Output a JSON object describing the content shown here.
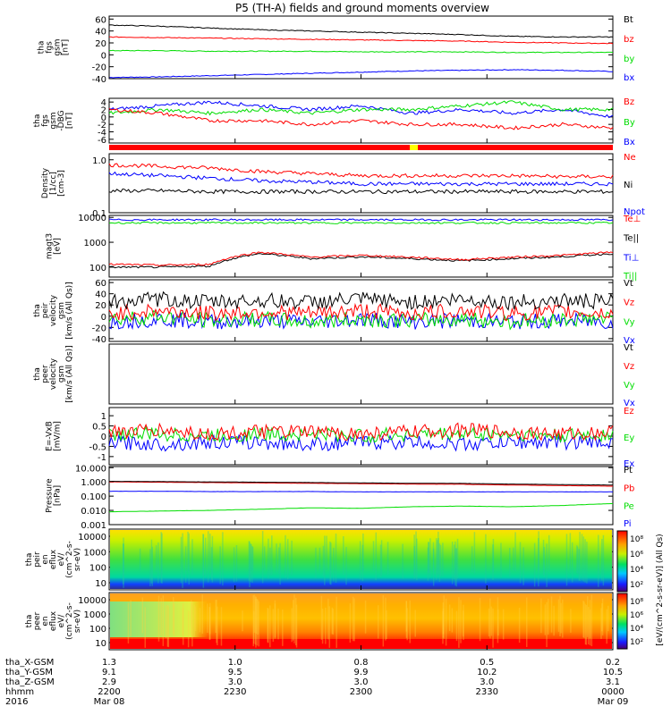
{
  "title": "P5 (TH-A) fields and ground moments overview",
  "colors": {
    "black": "#000000",
    "red": "#ff0000",
    "green": "#00dd00",
    "blue": "#0000ff",
    "yellow": "#ffff00"
  },
  "chart_data": [
    {
      "type": "line",
      "ylabel": [
        "tha",
        "fgs",
        "gsm",
        "[nT]"
      ],
      "ylim": [
        -40,
        65
      ],
      "yticks": [
        "60",
        "40",
        "20",
        "0",
        "-20",
        "-40"
      ],
      "legend": [
        "Bt",
        "bz",
        "by",
        "bx"
      ],
      "series": [
        {
          "name": "Bt",
          "values": [
            50,
            48,
            45,
            42,
            40,
            38,
            36,
            34,
            31,
            30,
            30
          ]
        },
        {
          "name": "bz",
          "values": [
            30,
            29,
            28,
            27,
            26,
            25,
            24,
            23,
            21,
            20,
            19
          ]
        },
        {
          "name": "by",
          "values": [
            7,
            7,
            6,
            6,
            6,
            5,
            5,
            5,
            4,
            4,
            4
          ]
        },
        {
          "name": "bx",
          "values": [
            -38,
            -37,
            -35,
            -33,
            -31,
            -29,
            -27,
            -26,
            -25,
            -26,
            -28
          ]
        }
      ]
    },
    {
      "type": "line",
      "ylabel": [
        "tha",
        "fgs",
        "gsm",
        "-DBG",
        "[nT]"
      ],
      "ylim": [
        -7,
        5
      ],
      "yticks": [
        "4",
        "2",
        "0",
        "-2",
        "-4",
        "-6"
      ],
      "legend": [
        "Bz",
        "By",
        "Bx"
      ],
      "series": [
        {
          "name": "Bz",
          "values": [
            2,
            1,
            -1,
            -1,
            -2,
            -1,
            -2,
            -2,
            -3,
            -2,
            -3
          ]
        },
        {
          "name": "By",
          "values": [
            1,
            2,
            1,
            2,
            1,
            2,
            2,
            3,
            4,
            2,
            2
          ]
        },
        {
          "name": "Bx",
          "values": [
            2,
            3,
            4,
            3,
            2,
            3,
            1,
            2,
            1,
            2,
            0
          ]
        }
      ]
    },
    {
      "type": "line",
      "ylabel": [
        "Density",
        "[1/cc]",
        "[cm-3]"
      ],
      "yscale": "log",
      "ylim": [
        0.1,
        1.3
      ],
      "yticks": [
        "1.0",
        "0.1"
      ],
      "legend": [
        "Ne",
        "Ni",
        "Npot"
      ],
      "series": [
        {
          "name": "Ne",
          "values": [
            0.8,
            0.75,
            0.7,
            0.6,
            0.55,
            0.5,
            0.5,
            0.5,
            0.5,
            0.48,
            0.48
          ]
        },
        {
          "name": "Ni",
          "values": [
            0.55,
            0.5,
            0.45,
            0.4,
            0.38,
            0.35,
            0.35,
            0.35,
            0.35,
            0.35,
            0.35
          ]
        },
        {
          "name": "Npot",
          "values": [
            0.26,
            0.26,
            0.25,
            0.25,
            0.25,
            0.25,
            0.25,
            0.25,
            0.25,
            0.25,
            0.25
          ]
        }
      ]
    },
    {
      "type": "line",
      "ylabel": [
        "magt3",
        "[eV]"
      ],
      "yscale": "log",
      "ylim": [
        40,
        12000
      ],
      "yticks": [
        "10000",
        "1000",
        "100"
      ],
      "legend": [
        "Te⊥",
        "Te||",
        "Ti⊥",
        "Ti||"
      ],
      "series": [
        {
          "name": "Te⊥",
          "values": [
            8000,
            8000,
            8000,
            8000,
            8000,
            8000,
            8000,
            8000,
            8000,
            8000,
            8000
          ]
        },
        {
          "name": "Te||",
          "values": [
            6000,
            6000,
            6000,
            6000,
            6000,
            6000,
            6000,
            6000,
            6000,
            6000,
            6000
          ]
        },
        {
          "name": "Ti⊥",
          "values": [
            130,
            120,
            130,
            400,
            250,
            300,
            250,
            200,
            250,
            300,
            400
          ]
        },
        {
          "name": "Ti||",
          "values": [
            100,
            100,
            110,
            350,
            220,
            260,
            220,
            180,
            220,
            260,
            350
          ]
        }
      ]
    },
    {
      "type": "line",
      "ylabel": [
        "tha",
        "peir",
        "velocity",
        "gsm",
        "[km/s (All Qs)]"
      ],
      "ylim": [
        -45,
        65
      ],
      "yticks": [
        "60",
        "40",
        "20",
        "0",
        "-20",
        "-40"
      ],
      "legend": [
        "Vt",
        "Vz",
        "Vy",
        "Vx"
      ],
      "series": [
        {
          "name": "Vt",
          "values": [
            25,
            30,
            25,
            28,
            25,
            30,
            25,
            30,
            25,
            28,
            25
          ]
        },
        {
          "name": "Vz",
          "values": [
            5,
            10,
            5,
            8,
            5,
            10,
            5,
            10,
            5,
            8,
            5
          ]
        },
        {
          "name": "Vy",
          "values": [
            -5,
            0,
            -8,
            -5,
            -10,
            -5,
            -8,
            -5,
            -10,
            -5,
            -5
          ]
        },
        {
          "name": "Vx",
          "values": [
            -10,
            -5,
            -10,
            -8,
            -10,
            -5,
            -10,
            -8,
            -10,
            -8,
            -10
          ]
        }
      ]
    },
    {
      "type": "line",
      "ylabel": [
        "tha",
        "peer",
        "velocity",
        "gsm",
        "[km/s (All Qs)]"
      ],
      "legend": [
        "Vt",
        "Vz",
        "Vy",
        "Vx"
      ]
    },
    {
      "type": "line",
      "ylabel": [
        "E=-VxB",
        "[mV/m]"
      ],
      "ylim": [
        -1.4,
        1.4
      ],
      "yticks": [
        "1",
        "0.5",
        "0",
        "-0.5",
        "-1"
      ],
      "legend": [
        "Ez",
        "Ey",
        "Ex"
      ],
      "series": [
        {
          "name": "Ez",
          "values": [
            0.2,
            0.3,
            0.1,
            0.2,
            0.2,
            0.1,
            0.2,
            0.3,
            0.2,
            0.1,
            0.2
          ]
        },
        {
          "name": "Ey",
          "values": [
            0.1,
            0.1,
            0,
            0.1,
            0.1,
            0,
            0.1,
            0.1,
            0.1,
            0,
            0.1
          ]
        },
        {
          "name": "Ex",
          "values": [
            -0.3,
            -0.4,
            -0.3,
            -0.3,
            -0.4,
            -0.3,
            -0.3,
            -0.4,
            -0.3,
            -0.3,
            -0.3
          ]
        }
      ]
    },
    {
      "type": "line",
      "ylabel": [
        "Pressure",
        "[nPa]"
      ],
      "yscale": "log",
      "ylim": [
        0.001,
        12
      ],
      "yticks": [
        "10.000",
        "1.000",
        "0.100",
        "0.010",
        "0.001"
      ],
      "legend": [
        "Pt",
        "Pb",
        "Pe",
        "Pi"
      ],
      "series": [
        {
          "name": "Pt",
          "values": [
            1.1,
            1.05,
            1.0,
            0.95,
            0.9,
            0.85,
            0.8,
            0.78,
            0.7,
            0.65,
            0.6
          ]
        },
        {
          "name": "Pb",
          "values": [
            1.0,
            0.95,
            0.9,
            0.85,
            0.8,
            0.75,
            0.7,
            0.68,
            0.6,
            0.55,
            0.5
          ]
        },
        {
          "name": "Pe",
          "values": [
            0.22,
            0.22,
            0.21,
            0.21,
            0.21,
            0.2,
            0.2,
            0.2,
            0.2,
            0.2,
            0.2
          ]
        },
        {
          "name": "Pi",
          "values": [
            0.008,
            0.009,
            0.01,
            0.012,
            0.015,
            0.014,
            0.018,
            0.02,
            0.018,
            0.022,
            0.03
          ]
        }
      ]
    },
    {
      "type": "heatmap",
      "ylabel": [
        "tha",
        "peir",
        "en",
        "eflux",
        "eV/",
        "(cm^2-s-",
        "sr-eV)"
      ],
      "yscale": "log",
      "yticks": [
        "10000",
        "1000",
        "100",
        "10"
      ]
    },
    {
      "type": "heatmap",
      "ylabel": [
        "tha",
        "peer",
        "en",
        "eflux",
        "eV/",
        "(cm^2-s-",
        "sr-eV)"
      ],
      "yscale": "log",
      "yticks": [
        "10000",
        "1000",
        "100",
        "10"
      ]
    }
  ],
  "spectrogram_colorbar": {
    "label": "[eV/(cm^2-s-sr-eV)] (All Qs)",
    "ticks_top": [
      "10⁸",
      "10⁶",
      "10⁴",
      "10²"
    ],
    "ticks_bottom": [
      "10⁸",
      "10⁶",
      "10⁴",
      "10²"
    ]
  },
  "x_axis": {
    "row_labels": [
      "tha_X-GSM",
      "tha_Y-GSM",
      "tha_Z-GSM",
      "hhmm",
      "2016"
    ],
    "ticks": [
      {
        "x_gsm": "1.3",
        "y_gsm": "9.1",
        "z_gsm": "2.9",
        "hhmm": "2200",
        "date": "Mar 08"
      },
      {
        "x_gsm": "1.0",
        "y_gsm": "9.5",
        "z_gsm": "3.0",
        "hhmm": "2230",
        "date": ""
      },
      {
        "x_gsm": "0.8",
        "y_gsm": "9.9",
        "z_gsm": "3.0",
        "hhmm": "2300",
        "date": ""
      },
      {
        "x_gsm": "0.5",
        "y_gsm": "10.2",
        "z_gsm": "3.0",
        "hhmm": "2330",
        "date": ""
      },
      {
        "x_gsm": "0.2",
        "y_gsm": "10.5",
        "z_gsm": "3.1",
        "hhmm": "0000",
        "date": "Mar 09"
      }
    ]
  }
}
